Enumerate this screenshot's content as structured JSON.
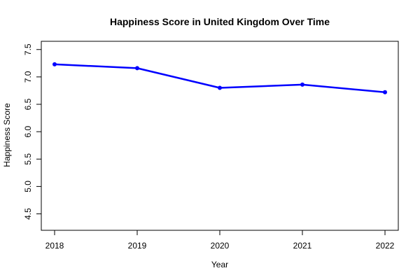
{
  "chart_data": {
    "type": "line",
    "title": "Happiness Score in United Kingdom Over Time",
    "xlabel": "Year",
    "ylabel": "Happiness Score",
    "x": [
      "2018",
      "2019",
      "2020",
      "2021",
      "2022"
    ],
    "series": [
      {
        "name": "United Kingdom",
        "values": [
          7.23,
          7.16,
          6.8,
          6.86,
          6.72
        ],
        "color": "#0000ff"
      }
    ],
    "ylim": [
      4.2,
      7.65
    ],
    "yticks": [
      "4.5",
      "5.0",
      "5.5",
      "6.0",
      "6.5",
      "7.0",
      "7.5"
    ],
    "grid": false,
    "legend": "none"
  }
}
